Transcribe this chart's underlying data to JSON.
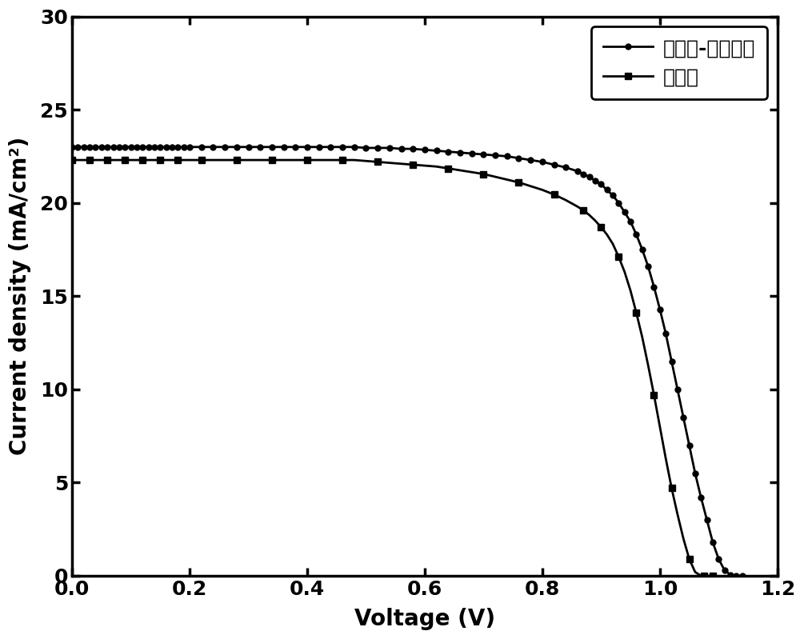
{
  "title": "",
  "xlabel": "Voltage (V)",
  "ylabel": "Current density (mA/cm²)",
  "xlim": [
    0.0,
    1.2
  ],
  "ylim": [
    0,
    30
  ],
  "xticks": [
    0.0,
    0.2,
    0.4,
    0.6,
    0.8,
    1.0,
    1.2
  ],
  "yticks": [
    0,
    5,
    10,
    15,
    20,
    25,
    30
  ],
  "legend1": "钒钓矿-碳量子点",
  "legend2": "钒钓矿",
  "line_color": "#000000",
  "background_color": "#ffffff",
  "series1": {
    "x": [
      0.0,
      0.01,
      0.02,
      0.03,
      0.04,
      0.05,
      0.06,
      0.07,
      0.08,
      0.09,
      0.1,
      0.11,
      0.12,
      0.13,
      0.14,
      0.15,
      0.16,
      0.17,
      0.18,
      0.19,
      0.2,
      0.22,
      0.24,
      0.26,
      0.28,
      0.3,
      0.32,
      0.34,
      0.36,
      0.38,
      0.4,
      0.42,
      0.44,
      0.46,
      0.48,
      0.5,
      0.52,
      0.54,
      0.56,
      0.58,
      0.6,
      0.62,
      0.64,
      0.66,
      0.68,
      0.7,
      0.72,
      0.74,
      0.76,
      0.78,
      0.8,
      0.82,
      0.84,
      0.86,
      0.87,
      0.88,
      0.89,
      0.9,
      0.91,
      0.92,
      0.93,
      0.94,
      0.95,
      0.96,
      0.97,
      0.98,
      0.99,
      1.0,
      1.01,
      1.02,
      1.03,
      1.04,
      1.05,
      1.06,
      1.07,
      1.08,
      1.09,
      1.1,
      1.11,
      1.12,
      1.13,
      1.14
    ],
    "y": [
      23.0,
      23.0,
      23.0,
      23.0,
      23.0,
      23.0,
      23.0,
      23.0,
      23.0,
      23.0,
      23.0,
      23.0,
      23.0,
      23.0,
      23.0,
      23.0,
      23.0,
      23.0,
      23.0,
      23.0,
      23.0,
      23.0,
      23.0,
      23.0,
      23.0,
      23.0,
      23.0,
      23.0,
      23.0,
      23.0,
      23.0,
      23.0,
      23.0,
      23.0,
      23.0,
      22.95,
      22.95,
      22.95,
      22.9,
      22.9,
      22.85,
      22.8,
      22.75,
      22.7,
      22.65,
      22.6,
      22.55,
      22.5,
      22.4,
      22.3,
      22.2,
      22.05,
      21.9,
      21.7,
      21.55,
      21.4,
      21.2,
      21.0,
      20.7,
      20.4,
      20.0,
      19.5,
      19.0,
      18.3,
      17.5,
      16.6,
      15.5,
      14.3,
      13.0,
      11.5,
      10.0,
      8.5,
      7.0,
      5.5,
      4.2,
      3.0,
      1.8,
      0.9,
      0.3,
      0.05,
      0.0,
      0.0
    ],
    "marker": "o",
    "label": "钒钓矿-碳量子点"
  },
  "series2": {
    "x": [
      0.0,
      0.01,
      0.02,
      0.03,
      0.04,
      0.05,
      0.06,
      0.07,
      0.08,
      0.09,
      0.1,
      0.11,
      0.12,
      0.13,
      0.14,
      0.15,
      0.16,
      0.17,
      0.18,
      0.19,
      0.2,
      0.22,
      0.24,
      0.26,
      0.28,
      0.3,
      0.32,
      0.34,
      0.36,
      0.38,
      0.4,
      0.42,
      0.44,
      0.46,
      0.48,
      0.5,
      0.52,
      0.54,
      0.56,
      0.58,
      0.6,
      0.62,
      0.64,
      0.66,
      0.68,
      0.7,
      0.72,
      0.74,
      0.76,
      0.78,
      0.8,
      0.82,
      0.84,
      0.86,
      0.87,
      0.88,
      0.89,
      0.9,
      0.91,
      0.92,
      0.93,
      0.94,
      0.95,
      0.96,
      0.97,
      0.98,
      0.99,
      1.0,
      1.01,
      1.02,
      1.03,
      1.04,
      1.05,
      1.06,
      1.07,
      1.075,
      1.08,
      1.085,
      1.09
    ],
    "y": [
      22.3,
      22.3,
      22.3,
      22.3,
      22.3,
      22.3,
      22.3,
      22.3,
      22.3,
      22.3,
      22.3,
      22.3,
      22.3,
      22.3,
      22.3,
      22.3,
      22.3,
      22.3,
      22.3,
      22.3,
      22.3,
      22.3,
      22.3,
      22.3,
      22.3,
      22.3,
      22.3,
      22.3,
      22.3,
      22.3,
      22.3,
      22.3,
      22.3,
      22.3,
      22.3,
      22.25,
      22.2,
      22.15,
      22.1,
      22.05,
      22.0,
      21.95,
      21.85,
      21.75,
      21.65,
      21.55,
      21.4,
      21.25,
      21.1,
      20.9,
      20.7,
      20.45,
      20.15,
      19.8,
      19.6,
      19.35,
      19.05,
      18.7,
      18.3,
      17.8,
      17.1,
      16.3,
      15.3,
      14.1,
      12.8,
      11.3,
      9.7,
      8.0,
      6.3,
      4.7,
      3.3,
      2.0,
      0.9,
      0.2,
      0.0,
      0.0,
      0.0,
      0.0,
      0.0
    ],
    "marker": "s",
    "label": "钒钓矿"
  }
}
